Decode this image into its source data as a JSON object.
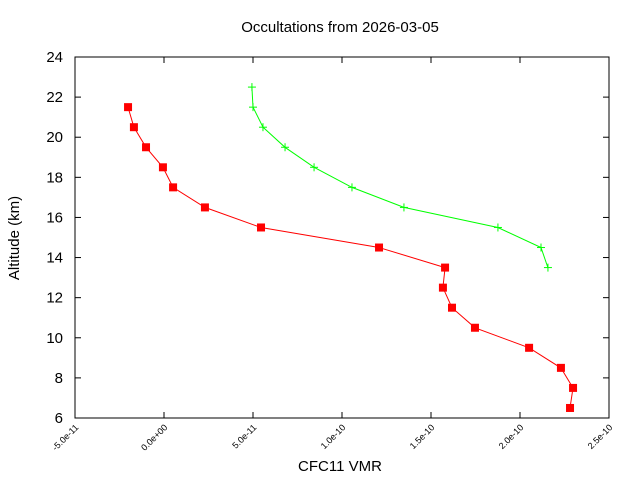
{
  "chart_data": {
    "type": "line",
    "title": "Occultations from 2026-03-05",
    "xlabel": "CFC11 VMR",
    "ylabel": "Altitude (km)",
    "xlim": [
      -5e-11,
      2.5e-10
    ],
    "ylim": [
      6,
      24
    ],
    "xticks": [
      -5e-11,
      0,
      5e-11,
      1e-10,
      1.5e-10,
      2e-10,
      2.5e-10
    ],
    "xtick_labels": [
      "-5.0e-11",
      "0.0e+00",
      "5.0e-11",
      "1.0e-10",
      "1.5e-10",
      "2.0e-10",
      "2.5e-10"
    ],
    "yticks": [
      6,
      8,
      10,
      12,
      14,
      16,
      18,
      20,
      22,
      24
    ],
    "ytick_labels": [
      "6",
      "8",
      "10",
      "12",
      "14",
      "16",
      "18",
      "20",
      "22",
      "24"
    ],
    "grid": false,
    "series": [
      {
        "color": "#ff0000",
        "marker": "square",
        "x": [
          -2.02e-11,
          -1.69e-11,
          -1.01e-11,
          -6e-13,
          5.1e-12,
          2.3e-11,
          5.45e-11,
          1.208e-10,
          1.579e-10,
          1.567e-10,
          1.618e-10,
          1.747e-10,
          2.051e-10,
          2.23e-10,
          2.298e-10,
          2.281e-10
        ],
        "y": [
          21.5,
          20.5,
          19.5,
          18.5,
          17.5,
          16.5,
          15.5,
          14.5,
          13.5,
          12.5,
          11.5,
          10.5,
          9.5,
          8.5,
          7.5,
          6.5
        ]
      },
      {
        "color": "#00ff00",
        "marker": "plus",
        "x": [
          4.94e-11,
          5e-11,
          5.56e-11,
          6.8e-11,
          8.43e-11,
          1.056e-10,
          1.348e-10,
          1.876e-10,
          2.118e-10,
          2.157e-10
        ],
        "y": [
          22.5,
          21.5,
          20.5,
          19.5,
          18.5,
          17.5,
          16.5,
          15.5,
          14.5,
          13.5
        ]
      }
    ]
  }
}
